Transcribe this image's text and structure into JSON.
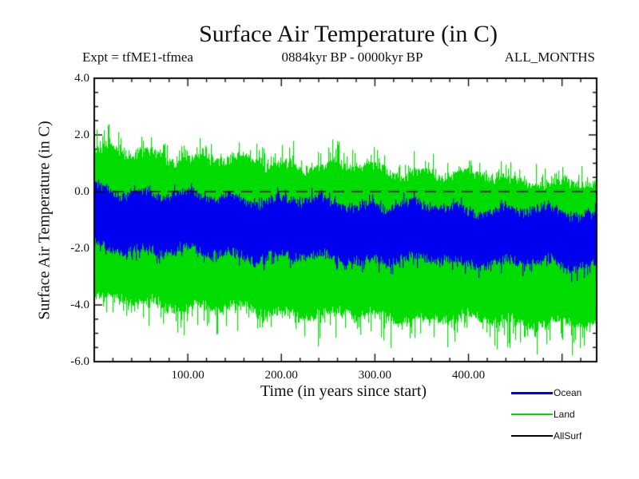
{
  "page": {
    "background": "#ffffff"
  },
  "chart_data": {
    "type": "line",
    "title": "Surface Air Temperature (in C)",
    "subtitle_left": "Expt = tfME1-tfmea",
    "subtitle_center": "0884kyr BP - 0000kyr BP",
    "subtitle_right": "ALL_MONTHS",
    "xlabel": "Time (in years since start)",
    "ylabel": "Surface Air Temperature (in C)",
    "xlim": [
      0,
      537
    ],
    "ylim": [
      -6.0,
      4.0
    ],
    "x_major_ticks": [
      100,
      200,
      300,
      400
    ],
    "x_tick_labels": [
      "100.00",
      "200.00",
      "300.00",
      "400.00"
    ],
    "x_minor_step": 20,
    "y_major_ticks": [
      4.0,
      2.0,
      0.0,
      -2.0,
      -4.0,
      -6.0
    ],
    "y_tick_labels": [
      "4.0",
      "2.0",
      "0.0",
      "-2.0",
      "-4.0",
      "-6.0"
    ],
    "y_minor_step": 0.5,
    "grid": false,
    "zero_reference_line": {
      "y": 0.0,
      "style": "dashed",
      "color": "#000000"
    },
    "legend": {
      "position": "bottom-right",
      "entries": [
        {
          "name": "Ocean",
          "color": "#0000f0"
        },
        {
          "name": "Land",
          "color": "#00dc00"
        },
        {
          "name": "AllSurf",
          "color": "#000000"
        }
      ]
    },
    "draw_order": [
      "Land",
      "Ocean"
    ],
    "series": [
      {
        "name": "Land",
        "color": "#00dc00",
        "style": "dense monthly noise band",
        "envelope": {
          "x": [
            0,
            100,
            200,
            300,
            400,
            537
          ],
          "top_typical": [
            1.55,
            1.3,
            1.1,
            0.9,
            0.65,
            0.3
          ],
          "top_spikes": [
            2.3,
            1.95,
            1.85,
            1.6,
            1.4,
            1.1
          ],
          "bottom_typical": [
            -3.9,
            -4.15,
            -4.35,
            -4.5,
            -4.6,
            -4.8
          ],
          "bottom_spikes": [
            -4.6,
            -5.15,
            -5.45,
            -5.55,
            -5.65,
            -5.85
          ]
        }
      },
      {
        "name": "Ocean",
        "color": "#0000f0",
        "style": "dense monthly noise band",
        "envelope": {
          "x": [
            0,
            100,
            200,
            300,
            400,
            537
          ],
          "top_typical": [
            0.2,
            -0.05,
            -0.2,
            -0.35,
            -0.5,
            -0.68
          ],
          "top_spikes": [
            0.45,
            0.25,
            0.1,
            -0.05,
            -0.22,
            -0.4
          ],
          "bottom_typical": [
            -2.05,
            -2.25,
            -2.4,
            -2.5,
            -2.58,
            -2.68
          ],
          "bottom_spikes": [
            -2.35,
            -2.62,
            -2.82,
            -2.92,
            -2.98,
            -3.1
          ]
        }
      },
      {
        "name": "AllSurf",
        "color": "#000000",
        "note": "not visibly distinct in plot; overlapped by Ocean and Land bands"
      }
    ]
  }
}
